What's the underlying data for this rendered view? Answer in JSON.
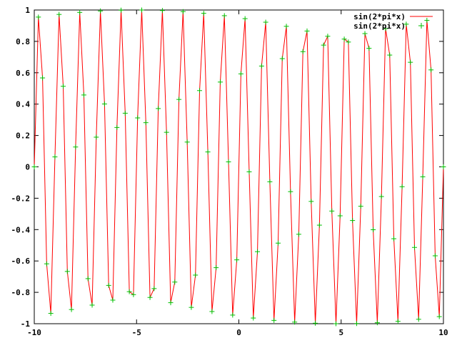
{
  "chart_data": {
    "type": "line",
    "xlim": [
      -10,
      10
    ],
    "ylim": [
      -1,
      1
    ],
    "x_ticks": [
      -10,
      -5,
      0,
      5,
      10
    ],
    "y_ticks": [
      -1,
      -0.8,
      -0.6,
      -0.4,
      -0.2,
      0,
      0.2,
      0.4,
      0.6,
      0.8,
      1
    ],
    "x_tick_labels": [
      "-10",
      "-5",
      "0",
      "5",
      "10"
    ],
    "y_tick_labels": [
      "-1",
      "-0.8",
      "-0.6",
      "-0.4",
      "-0.2",
      "0",
      "0.2",
      "0.4",
      "0.6",
      "0.8",
      "1"
    ],
    "grid": false,
    "legend_position": "top-right",
    "sample_count": 100,
    "series": [
      {
        "name": "sin(2*pi*x)",
        "style": "lines",
        "color": "#ff0000"
      },
      {
        "name": "sin(2*pi*x)",
        "style": "points",
        "marker": "plus",
        "color": "#00c000"
      }
    ]
  }
}
